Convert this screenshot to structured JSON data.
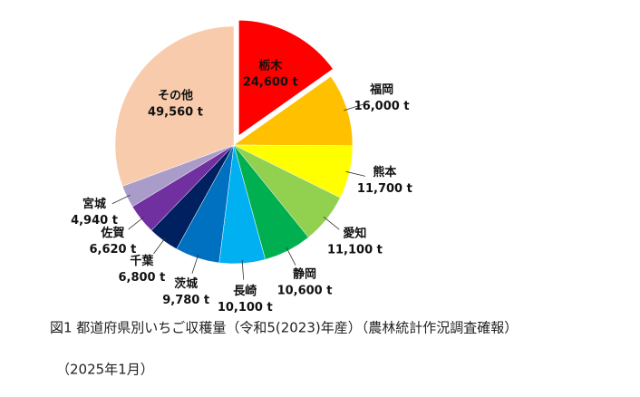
{
  "chart_data": {
    "type": "pie",
    "title": "図1 都道府県別いちご収穫量（令和5(2023)年産）（農林統計作況調査確報）",
    "subtitle": "（2025年1月）",
    "categories": [
      "栃木",
      "福岡",
      "熊本",
      "愛知",
      "静岡",
      "長崎",
      "茨城",
      "千葉",
      "佐賀",
      "宮城",
      "その他"
    ],
    "values": [
      24600,
      16000,
      11700,
      11100,
      10600,
      10100,
      9780,
      6800,
      6620,
      4940,
      49560
    ],
    "value_labels": [
      "24,600 t",
      "16,000 t",
      "11,700 t",
      "11,100 t",
      "10,600 t",
      "10,100 t",
      "9,780 t",
      "6,800 t",
      "6,620 t",
      "4,940 t",
      "49,560 t"
    ],
    "colors": [
      "#ff0000",
      "#ffc000",
      "#ffff00",
      "#92d050",
      "#00b050",
      "#00b0f0",
      "#0070c0",
      "#002060",
      "#7030a0",
      "#a99cc9",
      "#f8cbad"
    ],
    "explode": "栃木"
  }
}
